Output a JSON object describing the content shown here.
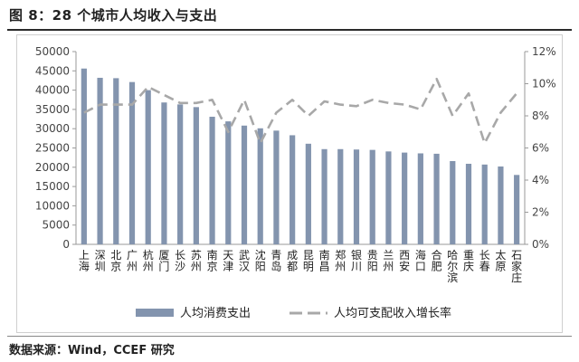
{
  "title": "图 8：28 个城市人均收入与支出",
  "source": "数据来源：Wind，CCEF 研究",
  "chart_data": {
    "type": "bar",
    "categories": [
      "上海",
      "深圳",
      "北京",
      "广州",
      "杭州",
      "厦门",
      "长沙",
      "苏州",
      "南京",
      "天津",
      "武汉",
      "沈阳",
      "青岛",
      "成都",
      "昆明",
      "南昌",
      "郑州",
      "银川",
      "贵阳",
      "兰州",
      "西安",
      "海口",
      "合肥",
      "哈尔滨",
      "重庆",
      "长春",
      "太原",
      "石家庄"
    ],
    "series": [
      {
        "name": "人均消费支出",
        "type": "bar",
        "axis": "left",
        "color": "#8394ae",
        "values": [
          45600,
          43200,
          43100,
          42100,
          40000,
          36800,
          36300,
          35600,
          33100,
          31900,
          30800,
          30100,
          29500,
          28300,
          26100,
          24700,
          24700,
          24600,
          24500,
          24100,
          23800,
          23600,
          23500,
          21600,
          20900,
          20700,
          20200,
          18000
        ]
      },
      {
        "name": "人均可支配收入增长率",
        "type": "line",
        "axis": "right",
        "color": "#a8a8a8",
        "values": [
          8.2,
          8.7,
          8.7,
          8.7,
          9.8,
          9.3,
          8.8,
          8.8,
          9.0,
          7.0,
          9.0,
          6.3,
          8.2,
          9.0,
          8.0,
          8.9,
          8.7,
          8.6,
          9.0,
          8.8,
          8.7,
          8.4,
          10.3,
          8.0,
          9.4,
          6.3,
          8.2,
          9.4
        ]
      }
    ],
    "y_left": {
      "min": 0,
      "max": 50000,
      "ticks": [
        "0",
        "5000",
        "10000",
        "15000",
        "20000",
        "25000",
        "30000",
        "35000",
        "40000",
        "45000",
        "50000"
      ]
    },
    "y_right": {
      "min": 0,
      "max": 12,
      "ticks": [
        "0%",
        "2%",
        "4%",
        "6%",
        "8%",
        "10%",
        "12%"
      ]
    },
    "grid": false,
    "legend": "bottom"
  }
}
